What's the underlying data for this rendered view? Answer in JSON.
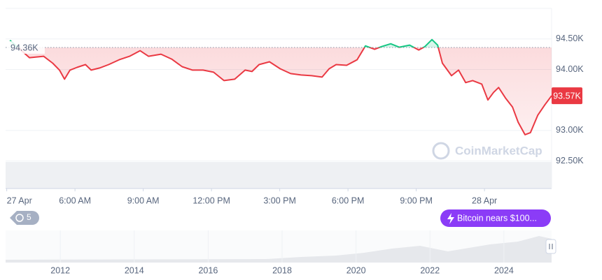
{
  "chart_data": {
    "type": "line",
    "watermark": "CoinMarketCap",
    "x": [
      3.14,
      4.0,
      4.62,
      5.02,
      5.32,
      5.54,
      5.78,
      6.09,
      6.46,
      6.71,
      7.08,
      7.48,
      7.94,
      8.4,
      8.86,
      9.23,
      9.78,
      10.25,
      10.71,
      11.17,
      11.63,
      12.09,
      12.55,
      13.02,
      13.48,
      13.78,
      14.09,
      14.55,
      15.02,
      15.48,
      15.94,
      16.4,
      16.86,
      17.17,
      17.48,
      17.94,
      18.4,
      18.77,
      19.17,
      19.48,
      19.88,
      20.25,
      20.71,
      21.11,
      21.38,
      21.69,
      21.94,
      22.15,
      22.55,
      22.86,
      23.17,
      23.48,
      23.88,
      24.15,
      24.4,
      24.62,
      24.92,
      25.23,
      25.48,
      25.78,
      26.02,
      26.34,
      26.65,
      26.95
    ],
    "values": [
      94477,
      94193,
      94216,
      94102,
      93989,
      93841,
      93989,
      94034,
      94080,
      93989,
      94023,
      94080,
      94159,
      94216,
      94307,
      94216,
      94250,
      94170,
      94045,
      93989,
      93989,
      93955,
      93818,
      93841,
      93989,
      93966,
      94080,
      94125,
      94011,
      93932,
      93909,
      93898,
      93875,
      94011,
      94080,
      94068,
      94159,
      94386,
      94330,
      94375,
      94420,
      94364,
      94398,
      94318,
      94375,
      94489,
      94398,
      94102,
      93898,
      93989,
      93784,
      93818,
      93761,
      93500,
      93625,
      93705,
      93534,
      93386,
      93136,
      92932,
      92966,
      93250,
      93420,
      93570
    ],
    "up_color": "#16c784",
    "down_color": "#ea3943",
    "baseline": {
      "value": 94360,
      "label": "94.36K"
    },
    "last_price": {
      "value": 93570,
      "label": "93.57K"
    },
    "xlim": [
      2.95,
      26.95
    ],
    "xticks": [
      {
        "value": 3,
        "label": "27 Apr"
      },
      {
        "value": 6,
        "label": "6:00 AM"
      },
      {
        "value": 9,
        "label": "9:00 AM"
      },
      {
        "value": 12,
        "label": "12:00 PM"
      },
      {
        "value": 15,
        "label": "3:00 PM"
      },
      {
        "value": 18,
        "label": "6:00 PM"
      },
      {
        "value": 21,
        "label": "9:00 PM"
      },
      {
        "value": 24,
        "label": "28 Apr"
      }
    ],
    "ylim": [
      92050,
      95000
    ],
    "yticks": [
      {
        "value": 92500,
        "label": "92.50K"
      },
      {
        "value": 93000,
        "label": "93.00K"
      },
      {
        "value": 94000,
        "label": "94.00K"
      },
      {
        "value": 94500,
        "label": "94.50K"
      }
    ],
    "grid": true,
    "history_count": 5,
    "news": "Bitcoin nears $100...",
    "navigator": {
      "xlim": [
        2010.52,
        2025.29
      ],
      "xticks": [
        2012,
        2014,
        2016,
        2018,
        2020,
        2022,
        2024
      ]
    }
  }
}
